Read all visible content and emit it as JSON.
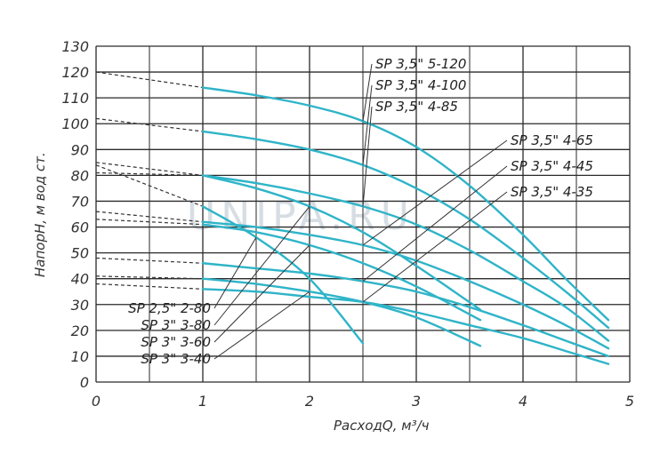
{
  "chart_data": {
    "type": "line",
    "xlabel": "РасходQ, м³/ч",
    "ylabel": "НапорН, м вод ст.",
    "xlim": [
      0,
      5
    ],
    "ylim": [
      0,
      130
    ],
    "x_ticks": [
      "0",
      "1",
      "2",
      "3",
      "4",
      "5"
    ],
    "y_ticks": [
      "0",
      "10",
      "20",
      "30",
      "40",
      "50",
      "60",
      "70",
      "80",
      "90",
      "100",
      "110",
      "120",
      "130"
    ],
    "grid": true,
    "watermark": "UNIPA.RU",
    "series": [
      {
        "name": "SP 3,5\" 5-120",
        "dashed_start": [
          0,
          120
        ],
        "points": [
          [
            1,
            114
          ],
          [
            1.5,
            111
          ],
          [
            2,
            107
          ],
          [
            2.5,
            101
          ],
          [
            3,
            91
          ],
          [
            3.5,
            76
          ],
          [
            4,
            57
          ],
          [
            4.4,
            40
          ],
          [
            4.8,
            24
          ]
        ]
      },
      {
        "name": "SP 3,5\" 4-100",
        "dashed_start": [
          0,
          102
        ],
        "points": [
          [
            1,
            97
          ],
          [
            1.5,
            94
          ],
          [
            2,
            90
          ],
          [
            2.5,
            84
          ],
          [
            3,
            75
          ],
          [
            3.5,
            63
          ],
          [
            4,
            48
          ],
          [
            4.4,
            35
          ],
          [
            4.8,
            21
          ]
        ]
      },
      {
        "name": "SP 3,5\" 4-85",
        "dashed_start": [
          0,
          85
        ],
        "points": [
          [
            1,
            80
          ],
          [
            1.5,
            77
          ],
          [
            2,
            73
          ],
          [
            2.5,
            68
          ],
          [
            3,
            61
          ],
          [
            3.5,
            51
          ],
          [
            4,
            39
          ],
          [
            4.4,
            29
          ],
          [
            4.8,
            16
          ]
        ]
      },
      {
        "name": "SP 3,5\" 4-65",
        "dashed_start": [
          0,
          66
        ],
        "points": [
          [
            1,
            62
          ],
          [
            1.5,
            60
          ],
          [
            2,
            57
          ],
          [
            2.5,
            53
          ],
          [
            3,
            47
          ],
          [
            3.5,
            39
          ],
          [
            4,
            30
          ],
          [
            4.4,
            22
          ],
          [
            4.8,
            13
          ]
        ]
      },
      {
        "name": "SP 3,5\" 4-45",
        "dashed_start": [
          0,
          48
        ],
        "points": [
          [
            1,
            46
          ],
          [
            1.5,
            44
          ],
          [
            2,
            42
          ],
          [
            2.5,
            39
          ],
          [
            3,
            35
          ],
          [
            3.5,
            29
          ],
          [
            4,
            22
          ],
          [
            4.4,
            16
          ],
          [
            4.8,
            10
          ]
        ]
      },
      {
        "name": "SP 3,5\" 4-35",
        "dashed_start": [
          0,
          38
        ],
        "points": [
          [
            1,
            36
          ],
          [
            1.5,
            35
          ],
          [
            2,
            33
          ],
          [
            2.5,
            31
          ],
          [
            3,
            27
          ],
          [
            3.5,
            22
          ],
          [
            4,
            17
          ],
          [
            4.4,
            12
          ],
          [
            4.8,
            7
          ]
        ]
      },
      {
        "name": "SP 2,5\" 2-80",
        "dashed_start": [
          0,
          84
        ],
        "points": [
          [
            1,
            68
          ],
          [
            1.5,
            56
          ],
          [
            2,
            40
          ],
          [
            2.5,
            15
          ]
        ]
      },
      {
        "name": "SP 3\" 3-80",
        "dashed_start": [
          0,
          81
        ],
        "points": [
          [
            1,
            80
          ],
          [
            1.5,
            75
          ],
          [
            2,
            68
          ],
          [
            2.5,
            58
          ],
          [
            3,
            45
          ],
          [
            3.6,
            28
          ]
        ]
      },
      {
        "name": "SP 3\" 3-60",
        "dashed_start": [
          0,
          63
        ],
        "points": [
          [
            1,
            61
          ],
          [
            1.5,
            58
          ],
          [
            2,
            53
          ],
          [
            2.5,
            46
          ],
          [
            3,
            37
          ],
          [
            3.6,
            24
          ]
        ]
      },
      {
        "name": "SP 3\" 3-40",
        "dashed_start": [
          0,
          41
        ],
        "points": [
          [
            1,
            40
          ],
          [
            1.5,
            38
          ],
          [
            2,
            35
          ],
          [
            2.5,
            31
          ],
          [
            3,
            25
          ],
          [
            3.6,
            14
          ]
        ]
      }
    ],
    "labels": {
      "right_top": [
        "SP 3,5\" 5-120",
        "SP 3,5\" 4-100",
        "SP 3,5\" 4-85"
      ],
      "right_mid": [
        "SP 3,5\" 4-65",
        "SP 3,5\" 4-45",
        "SP 3,5\" 4-35"
      ],
      "left_bottom": [
        "SP 2,5\" 2-80",
        "SP 3\" 3-80",
        "SP 3\" 3-60",
        "SP 3\" 3-40"
      ]
    },
    "colors": {
      "curve": "#2fb4c8",
      "grid": "#2a2a2a",
      "leader": "#333333",
      "dash": "#333333"
    }
  }
}
